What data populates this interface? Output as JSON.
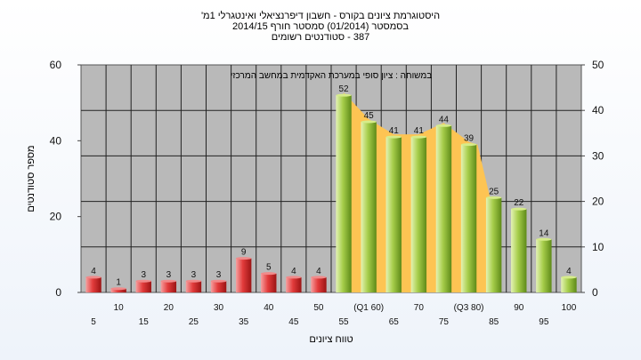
{
  "chart_data": {
    "type": "bar",
    "title_lines": [
      "היסטוגרמת ציונים בקורס - חשבון דיפרנציאלי ואינטגרלי 1מ'",
      "בסמסטר  (01/2014)  סמסטר חורף  2014/15",
      "387 - סטודנטים רשומים"
    ],
    "subtitle": "במשוחה : ציון סופי במערכת האקדמית במחשב המרכזי",
    "xlabel": "טווח ציונים",
    "ylabel": "מספר סטודנטים",
    "ylim": [
      0,
      60
    ],
    "y2lim": [
      0,
      50
    ],
    "yticks": [
      0,
      20,
      40,
      60
    ],
    "y2ticks": [
      0,
      10,
      20,
      30,
      40,
      50
    ],
    "grid": true,
    "categories": [
      "5",
      "10",
      "15",
      "20",
      "25",
      "30",
      "35",
      "40",
      "45",
      "50",
      "55",
      "(Q1 60)",
      "65",
      "70",
      "75",
      "(Q3 80)",
      "85",
      "90",
      "95",
      "100"
    ],
    "values": [
      4,
      1,
      3,
      3,
      3,
      3,
      9,
      5,
      4,
      4,
      52,
      45,
      41,
      41,
      44,
      39,
      25,
      22,
      14,
      4
    ],
    "bar_colors": [
      "red",
      "red",
      "red",
      "red",
      "red",
      "red",
      "red",
      "red",
      "red",
      "red",
      "green",
      "green",
      "green",
      "green",
      "green",
      "green",
      "green",
      "green",
      "green",
      "green"
    ],
    "iqr_band": {
      "from_category": "55",
      "to_category": "(Q3 80)",
      "color": "#fdc453"
    },
    "colors": {
      "red_bar": "#e03a3a",
      "green_bar": "#a9cf4a",
      "plot_background": "#b9b9b9",
      "band": "#fdc453"
    }
  }
}
